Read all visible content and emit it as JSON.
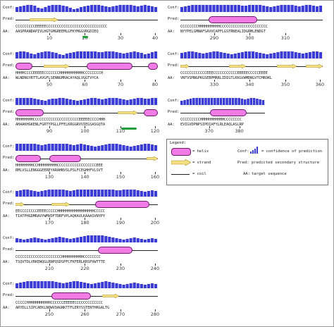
{
  "row_labels": {
    "conf": "Conf:",
    "pred": "Pred:",
    "aa": "AA:"
  },
  "blocks": [
    {
      "id": "b1",
      "pred": "CCCCCCCCCEEEEECCCCCCCCCCCCCCCCCCCCCCCCCCCC",
      "aa": "AASPRANDAPIVLHGTGMGREEMLGFKYMGGVRGDIEQ",
      "ticks": [
        10,
        20,
        30,
        40
      ],
      "start": 1,
      "helices": [],
      "strands": [
        [
          0.1,
          0.3
        ]
      ],
      "conf": [
        0.7,
        0.8,
        0.9,
        1,
        1,
        0.9,
        0.6,
        0.5,
        0.7,
        0.9,
        1,
        1,
        1,
        0.9,
        0.8,
        0.6,
        0.4,
        0.5,
        0.7,
        0.8,
        0.9,
        1,
        1,
        1,
        0.9,
        0.8,
        0.7,
        0.8,
        0.9,
        1,
        1,
        1,
        1,
        0.9,
        0.8,
        0.9,
        1,
        0.9,
        0.8,
        0.7
      ]
    },
    {
      "id": "b2",
      "pred": "HHHHCCCCEEEEECCCCCCCHHHHHHHHHHHCCCCCCCCH",
      "aa": "WLNDNGYRTTLAVGFLSENNGMRACAYAQLVGGTVYCA",
      "ticks": [
        50,
        60,
        70,
        80
      ],
      "start": 41,
      "helices": [
        [
          0.0,
          0.12
        ],
        [
          0.5,
          0.82
        ],
        [
          0.93,
          1.0
        ]
      ],
      "strands": [
        [
          0.2,
          0.38
        ]
      ],
      "conf": [
        0.9,
        1,
        1,
        0.9,
        0.7,
        0.6,
        0.8,
        0.9,
        1,
        1,
        0.9,
        0.8,
        0.6,
        0.5,
        0.7,
        0.8,
        0.9,
        1,
        1,
        1,
        1,
        1,
        1,
        0.9,
        0.9,
        1,
        1,
        1,
        0.9,
        0.8,
        0.7,
        0.8,
        0.9,
        1,
        0.9,
        0.8,
        0.6,
        0.7,
        0.9,
        1
      ]
    },
    {
      "id": "b3",
      "pred": "HHHHHHHHCCCCCCCCCCCCCCCCCCCCCEEEEECCCCHHH",
      "aa": "AHAAKHGKENLFGRTYPGLLPFELKRGGRVVIEGSASGQTA",
      "ticks": [
        90,
        100,
        110,
        120
      ],
      "start": 81,
      "helices": [
        [
          0.0,
          0.2
        ],
        [
          0.9,
          1.0
        ]
      ],
      "strands": [
        [
          0.72,
          0.86
        ]
      ],
      "conf": [
        1,
        1,
        1,
        1,
        1,
        0.9,
        0.8,
        0.7,
        0.6,
        0.8,
        0.9,
        0.9,
        1,
        1,
        0.9,
        0.8,
        0.7,
        0.6,
        0.7,
        0.8,
        0.9,
        1,
        1,
        0.9,
        0.8,
        0.9,
        1,
        1,
        1,
        0.9,
        0.8,
        0.7,
        0.8,
        0.9,
        1,
        1,
        0.9,
        0.9,
        1,
        1
      ]
    },
    {
      "id": "b4",
      "pred": "HHHHHHHHCCHHHHHHHHHCCCCCCCCCCCCCCCCCCEEE",
      "aa": "RMLVSLLENGGGEEREYARAHNVSLPSLFCEGHHFVLSVT",
      "ticks": [
        130,
        140,
        150,
        160
      ],
      "start": 121,
      "helices": [
        [
          0.0,
          0.18
        ],
        [
          0.24,
          0.46
        ]
      ],
      "strands": [
        [
          0.92,
          1.0
        ]
      ],
      "conf": [
        1,
        1,
        1,
        1,
        1,
        1,
        0.9,
        0.8,
        0.9,
        1,
        1,
        1,
        1,
        1,
        1,
        0.9,
        0.8,
        0.9,
        1,
        0.9,
        0.8,
        0.7,
        0.6,
        0.7,
        0.8,
        0.9,
        1,
        1,
        1,
        0.9,
        0.8,
        0.7,
        0.6,
        0.7,
        0.8,
        0.9,
        1,
        1,
        0.9,
        0.8
      ]
    },
    {
      "id": "b5",
      "pred": "EECCCCCCCCEEEECCCCCHHHHHHHHHHHHHHHHHCCCCC",
      "aa": "TIATPHGDMRAVYWMVDFTDRFVPLAQKAVLKAAASVNYPY",
      "ticks": [
        170,
        180,
        190,
        200
      ],
      "start": 161,
      "helices": [
        [
          0.56,
          0.94
        ]
      ],
      "strands": [
        [
          0.0,
          0.06
        ],
        [
          0.25,
          0.38
        ]
      ],
      "conf": [
        0.8,
        0.9,
        1,
        1,
        0.9,
        0.8,
        0.7,
        0.8,
        0.9,
        1,
        1,
        1,
        1,
        1,
        0.9,
        0.8,
        0.9,
        1,
        1,
        1,
        1,
        1,
        1,
        1,
        1,
        1,
        1,
        1,
        0.9,
        0.9,
        1,
        1,
        1,
        1,
        0.9,
        0.8,
        0.7,
        0.8,
        0.9,
        0.8
      ]
    },
    {
      "id": "b6",
      "pred": "CCCCCCCCCCCCCCCCCCCCCHHHHHHHHHHCCCCCCCC",
      "aa": "TSQVTDLVRKEWQGLRNPQSDSPFCFKFERLKRSPVWTTTE",
      "ticks": [
        210,
        220,
        230,
        240
      ],
      "start": 201,
      "helices": [
        [
          0.58,
          0.82
        ]
      ],
      "strands": [],
      "conf": [
        0.6,
        0.5,
        0.4,
        0.5,
        0.6,
        0.7,
        0.6,
        0.5,
        0.4,
        0.5,
        0.6,
        0.7,
        0.8,
        0.7,
        0.6,
        0.5,
        0.6,
        0.7,
        0.8,
        0.9,
        1,
        1,
        1,
        1,
        1,
        0.9,
        0.8,
        0.7,
        0.6,
        0.5,
        0.4,
        0.5,
        0.6,
        0.7,
        0.6,
        0.5,
        0.4,
        0.5,
        0.6,
        0.5
      ]
    },
    {
      "id": "b7",
      "pred": "CCCCCHHHHHHHHHHHCCCCCCEEEEECCCCCCCCCCCCC",
      "aa": "ARYDLLSIPCAEKLNQWVQAGNKTTFLERYSSTENTHRGALTG",
      "ticks": [
        250,
        260,
        270,
        280
      ],
      "start": 241,
      "helices": [
        [
          0.25,
          0.53
        ]
      ],
      "strands": [
        [
          0.61,
          0.73
        ]
      ],
      "conf": [
        0.7,
        0.8,
        0.9,
        1,
        1,
        1,
        1,
        1,
        1,
        1,
        1,
        0.9,
        0.8,
        0.7,
        0.8,
        0.9,
        1,
        1,
        0.9,
        0.8,
        0.7,
        0.6,
        0.7,
        0.8,
        0.9,
        1,
        0.9,
        0.8,
        0.7,
        0.6,
        0.5,
        0.6,
        0.7,
        0.8,
        0.7,
        0.6,
        0.5,
        0.6,
        0.7,
        0.6
      ]
    },
    {
      "id": "b8",
      "pred": "CCCCCCCCHHHHHHHHHHCCCCCCCCCCCCCCCCCCCCCC",
      "aa": "NYYPELGMNAFSAVVCAPFLGSTRNEALIDGRMLENDGT",
      "ticks": [
        290,
        300,
        310
      ],
      "start": 281,
      "helices": [
        [
          0.2,
          0.54
        ]
      ],
      "strands": [],
      "conf": [
        0.7,
        0.8,
        0.9,
        1,
        1,
        1,
        1,
        1,
        1,
        1,
        1,
        1,
        1,
        1,
        1,
        1,
        1,
        0.9,
        0.9,
        1,
        1,
        1,
        1,
        0.9,
        0.8,
        0.7,
        0.8,
        0.9,
        1,
        1,
        1,
        1,
        0.9,
        0.8,
        0.9,
        1,
        1,
        0.9,
        0.8,
        0.9
      ]
    },
    {
      "id": "b9",
      "pred": "CCCCCCCCCCCCEEECCCCCCCCCCCEEEEECCCCCEEEE",
      "aa": "VNTVSMNGPKGSEBPMRRLIDIGTLKKGVWMDNGVTCMROKL",
      "ticks": [
        330,
        340,
        350,
        360
      ],
      "start": 321,
      "helices": [],
      "strands": [
        [
          0.0,
          0.06
        ],
        [
          0.34,
          0.46
        ],
        [
          0.68,
          0.82
        ],
        [
          0.88,
          1.0
        ]
      ],
      "conf": [
        0.8,
        0.9,
        1,
        1,
        0.9,
        0.8,
        0.7,
        0.8,
        0.9,
        1,
        1,
        0.9,
        0.8,
        0.7,
        0.6,
        0.7,
        0.8,
        0.9,
        1,
        1,
        1,
        0.9,
        0.8,
        0.7,
        0.6,
        0.7,
        0.8,
        0.9,
        1,
        1,
        1,
        1,
        0.9,
        0.8,
        0.7,
        0.8,
        0.9,
        1,
        1,
        0.9
      ]
    },
    {
      "id": "b10",
      "pred": "CCCCCCCCCHHHHHHHHHHHCCCCCCCC",
      "aa": "EVIGVDPNPSIPDIAFYLRLEAQLASLRP",
      "ticks": [
        370,
        380
      ],
      "start": 361,
      "helices": [
        [
          0.35,
          0.78
        ]
      ],
      "strands": [],
      "conf": [
        0.6,
        0.7,
        0.8,
        0.9,
        1,
        1,
        1,
        1,
        1,
        1,
        1,
        1,
        1,
        1,
        1,
        1,
        1,
        1,
        1,
        1,
        0.9,
        0.8,
        0.9,
        1,
        1,
        0.9,
        0.8,
        0.7
      ]
    }
  ],
  "legend": {
    "title": "Legend:",
    "helix": "= helix",
    "strand": "= strand",
    "coil": "= coil",
    "conf_key": "Conf:",
    "conf_desc": "= confidence of prediction",
    "pred_key": "Pred:",
    "pred_desc": "predicted secondary structure",
    "aa_key": "AA:",
    "aa_desc": "target sequence"
  },
  "colors": {
    "bar": "#3b3bd6",
    "helix": "#f27ce6",
    "strand": "#f5e080",
    "green": "#1e9e3a"
  }
}
